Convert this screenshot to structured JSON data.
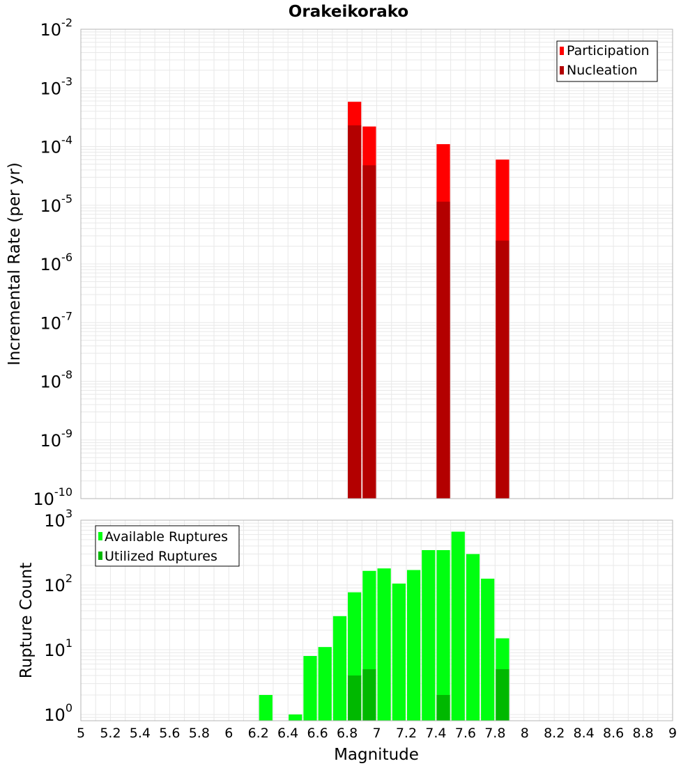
{
  "chart_data": [
    {
      "type": "bar",
      "title": "Orakeikorako",
      "ylabel": "Incremental Rate (per yr)",
      "xlabel": "",
      "x_range": [
        5,
        9
      ],
      "ylim": [
        1e-10,
        0.01
      ],
      "y_scale": "log",
      "y_tick_exponents": [
        "-2",
        "-3",
        "-4",
        "-5",
        "-6",
        "-7",
        "-8",
        "-9",
        "-10"
      ],
      "y_tick_base": "10",
      "bin_width": 0.1,
      "grid": true,
      "legend_position": "top-right",
      "series": [
        {
          "name": "Participation",
          "color": "#ff0000",
          "points": [
            {
              "x": 6.85,
              "y": 0.00058
            },
            {
              "x": 6.95,
              "y": 0.00022
            },
            {
              "x": 7.45,
              "y": 0.00011
            },
            {
              "x": 7.85,
              "y": 6e-05
            }
          ]
        },
        {
          "name": "Nucleation",
          "color": "#b30000",
          "points": [
            {
              "x": 6.85,
              "y": 0.00023
            },
            {
              "x": 6.95,
              "y": 4.8e-05
            },
            {
              "x": 7.45,
              "y": 1.15e-05
            },
            {
              "x": 7.85,
              "y": 2.5e-06
            }
          ]
        }
      ]
    },
    {
      "type": "bar",
      "title": "",
      "ylabel": "Rupture Count",
      "xlabel": "Magnitude",
      "x_range": [
        5,
        9
      ],
      "x_ticks": [
        "5",
        "5.2",
        "5.4",
        "5.6",
        "5.8",
        "6",
        "6.2",
        "6.4",
        "6.6",
        "6.8",
        "7",
        "7.2",
        "7.4",
        "7.6",
        "7.8",
        "8",
        "8.2",
        "8.4",
        "8.6",
        "8.8",
        "9"
      ],
      "ylim": [
        0.8,
        1000
      ],
      "y_scale": "log",
      "y_tick_exponents": [
        "3",
        "2",
        "1",
        "0"
      ],
      "y_tick_base": "10",
      "bin_width": 0.1,
      "grid": true,
      "legend_position": "top-left",
      "series": [
        {
          "name": "Available Ruptures",
          "color": "#00ff10",
          "points": [
            {
              "x": 6.25,
              "y": 2
            },
            {
              "x": 6.45,
              "y": 1
            },
            {
              "x": 6.55,
              "y": 8
            },
            {
              "x": 6.65,
              "y": 11
            },
            {
              "x": 6.75,
              "y": 33
            },
            {
              "x": 6.85,
              "y": 77
            },
            {
              "x": 6.95,
              "y": 165
            },
            {
              "x": 7.05,
              "y": 180
            },
            {
              "x": 7.15,
              "y": 105
            },
            {
              "x": 7.25,
              "y": 170
            },
            {
              "x": 7.35,
              "y": 345
            },
            {
              "x": 7.45,
              "y": 345
            },
            {
              "x": 7.55,
              "y": 665
            },
            {
              "x": 7.65,
              "y": 300
            },
            {
              "x": 7.75,
              "y": 125
            },
            {
              "x": 7.85,
              "y": 15
            }
          ]
        },
        {
          "name": "Utilized Ruptures",
          "color": "#00b800",
          "points": [
            {
              "x": 6.85,
              "y": 4
            },
            {
              "x": 6.95,
              "y": 5
            },
            {
              "x": 7.45,
              "y": 2
            },
            {
              "x": 7.85,
              "y": 5
            }
          ]
        }
      ]
    }
  ]
}
